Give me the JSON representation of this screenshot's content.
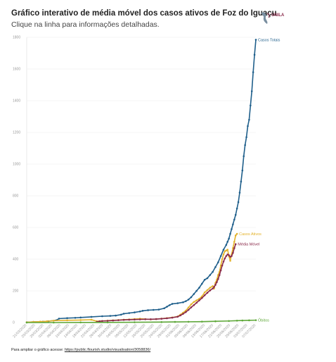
{
  "header": {
    "title": "Gráfico interativo de média móvel dos casos ativos de Foz do Iguaçu",
    "subtitle": "Clique na linha para informações detalhadas.",
    "logo_text": "UNILA"
  },
  "footer": {
    "text": "Para ampliar o gráfico acesse: ",
    "link": "https://public.flourish.studio/visualisation/3058836/"
  },
  "colors": {
    "casos_totais": "#1f5f8b",
    "casos_ativos": "#e3b22a",
    "media_movel": "#8a2a4a",
    "obitos": "#5fa83a",
    "grid": "#eeeeee",
    "axis_text": "#999999"
  },
  "chart_data": {
    "type": "line",
    "title": "Gráfico interativo de média móvel dos casos ativos de Foz do Iguaçu",
    "xlabel": "",
    "ylabel": "",
    "ylim": [
      0,
      1800
    ],
    "yticks": [
      0,
      200,
      400,
      600,
      800,
      1000,
      1200,
      1400,
      1600,
      1800
    ],
    "grid": true,
    "legend": "end-of-line labels",
    "x_tick_labels": [
      "21/03/2020",
      "25/03/2020",
      "29/03/2020",
      "02/04/2020",
      "06/04/2020",
      "10/04/2020",
      "14/04/2020",
      "18/04/2020",
      "22/04/2020",
      "26/04/2020",
      "30/04/2020",
      "04/05/2020",
      "08/05/2020",
      "12/05/2020",
      "16/05/2020",
      "20/05/2020",
      "24/05/2020",
      "28/05/2020",
      "01/06/2020",
      "05/06/2020",
      "09/06/2020",
      "13/06/2020",
      "17/06/2020",
      "21/06/2020",
      "25/06/2020",
      "29/06/2020",
      "03/07/2020",
      "07/07/2020"
    ],
    "series": [
      {
        "name": "Casos Totais",
        "points": [
          [
            0,
            2
          ],
          [
            5,
            4
          ],
          [
            12,
            6
          ],
          [
            16,
            8
          ],
          [
            22,
            15
          ],
          [
            24,
            25
          ],
          [
            30,
            28
          ],
          [
            36,
            30
          ],
          [
            40,
            32
          ],
          [
            48,
            36
          ],
          [
            56,
            40
          ],
          [
            62,
            42
          ],
          [
            66,
            44
          ],
          [
            70,
            50
          ],
          [
            72,
            56
          ],
          [
            76,
            60
          ],
          [
            80,
            64
          ],
          [
            84,
            70
          ],
          [
            86,
            74
          ],
          [
            90,
            78
          ],
          [
            94,
            80
          ],
          [
            98,
            82
          ],
          [
            102,
            90
          ],
          [
            104,
            100
          ],
          [
            106,
            110
          ],
          [
            108,
            118
          ],
          [
            112,
            122
          ],
          [
            116,
            128
          ],
          [
            118,
            135
          ],
          [
            120,
            145
          ],
          [
            122,
            160
          ],
          [
            124,
            180
          ],
          [
            126,
            200
          ],
          [
            128,
            220
          ],
          [
            130,
            245
          ],
          [
            132,
            270
          ],
          [
            134,
            280
          ],
          [
            136,
            300
          ],
          [
            138,
            320
          ],
          [
            140,
            350
          ],
          [
            142,
            380
          ],
          [
            144,
            420
          ],
          [
            146,
            460
          ],
          [
            148,
            490
          ],
          [
            149,
            510
          ],
          [
            150,
            530
          ],
          [
            151,
            560
          ],
          [
            152,
            590
          ],
          [
            153,
            620
          ],
          [
            154,
            650
          ],
          [
            155,
            680
          ],
          [
            156,
            720
          ],
          [
            157,
            760
          ],
          [
            158,
            820
          ],
          [
            159,
            890
          ],
          [
            160,
            960
          ],
          [
            161,
            1050
          ],
          [
            162,
            1120
          ],
          [
            163,
            1170
          ],
          [
            164,
            1240
          ],
          [
            165,
            1280
          ],
          [
            166,
            1370
          ],
          [
            167,
            1460
          ],
          [
            168,
            1580
          ],
          [
            169,
            1690
          ],
          [
            170,
            1785
          ]
        ]
      },
      {
        "name": "Casos Ativos",
        "points": [
          [
            0,
            2
          ],
          [
            5,
            4
          ],
          [
            10,
            6
          ],
          [
            15,
            8
          ],
          [
            20,
            12
          ],
          [
            30,
            14
          ],
          [
            40,
            16
          ],
          [
            48,
            18
          ],
          [
            52,
            8
          ],
          [
            56,
            10
          ],
          [
            60,
            12
          ],
          [
            64,
            14
          ],
          [
            68,
            16
          ],
          [
            72,
            18
          ],
          [
            76,
            20
          ],
          [
            80,
            22
          ],
          [
            84,
            24
          ],
          [
            88,
            22
          ],
          [
            92,
            20
          ],
          [
            96,
            22
          ],
          [
            100,
            25
          ],
          [
            104,
            28
          ],
          [
            108,
            32
          ],
          [
            112,
            38
          ],
          [
            114,
            50
          ],
          [
            116,
            62
          ],
          [
            118,
            75
          ],
          [
            120,
            95
          ],
          [
            122,
            115
          ],
          [
            124,
            130
          ],
          [
            126,
            140
          ],
          [
            128,
            150
          ],
          [
            130,
            165
          ],
          [
            132,
            190
          ],
          [
            134,
            205
          ],
          [
            136,
            220
          ],
          [
            138,
            230
          ],
          [
            139,
            215
          ],
          [
            140,
            250
          ],
          [
            141,
            270
          ],
          [
            142,
            300
          ],
          [
            143,
            320
          ],
          [
            144,
            360
          ],
          [
            145,
            400
          ],
          [
            146,
            430
          ],
          [
            147,
            450
          ],
          [
            148,
            455
          ],
          [
            149,
            460
          ],
          [
            150,
            420
          ],
          [
            151,
            390
          ],
          [
            152,
            430
          ],
          [
            153,
            470
          ],
          [
            154,
            510
          ],
          [
            155,
            550
          ],
          [
            156,
            560
          ]
        ]
      },
      {
        "name": "Média Móvel",
        "points": [
          [
            52,
            4
          ],
          [
            54,
            8
          ],
          [
            56,
            10
          ],
          [
            60,
            11
          ],
          [
            64,
            13
          ],
          [
            68,
            15
          ],
          [
            72,
            17
          ],
          [
            76,
            18
          ],
          [
            80,
            19
          ],
          [
            84,
            20
          ],
          [
            88,
            21
          ],
          [
            92,
            21
          ],
          [
            96,
            22
          ],
          [
            100,
            24
          ],
          [
            104,
            27
          ],
          [
            108,
            31
          ],
          [
            112,
            37
          ],
          [
            114,
            45
          ],
          [
            116,
            55
          ],
          [
            118,
            66
          ],
          [
            120,
            80
          ],
          [
            122,
            96
          ],
          [
            124,
            110
          ],
          [
            126,
            125
          ],
          [
            128,
            140
          ],
          [
            130,
            155
          ],
          [
            132,
            172
          ],
          [
            134,
            188
          ],
          [
            136,
            203
          ],
          [
            138,
            215
          ],
          [
            139,
            225
          ],
          [
            140,
            238
          ],
          [
            141,
            255
          ],
          [
            142,
            275
          ],
          [
            143,
            300
          ],
          [
            144,
            330
          ],
          [
            145,
            360
          ],
          [
            146,
            385
          ],
          [
            147,
            405
          ],
          [
            148,
            420
          ],
          [
            149,
            430
          ],
          [
            150,
            425
          ],
          [
            151,
            415
          ],
          [
            152,
            420
          ],
          [
            153,
            440
          ],
          [
            154,
            470
          ],
          [
            155,
            495
          ]
        ]
      },
      {
        "name": "Óbitos",
        "points": [
          [
            0,
            0
          ],
          [
            20,
            0
          ],
          [
            40,
            1
          ],
          [
            60,
            1
          ],
          [
            80,
            2
          ],
          [
            100,
            3
          ],
          [
            110,
            4
          ],
          [
            120,
            5
          ],
          [
            130,
            6
          ],
          [
            140,
            8
          ],
          [
            150,
            10
          ],
          [
            156,
            12
          ],
          [
            160,
            13
          ],
          [
            165,
            14
          ],
          [
            170,
            15
          ]
        ]
      }
    ]
  }
}
